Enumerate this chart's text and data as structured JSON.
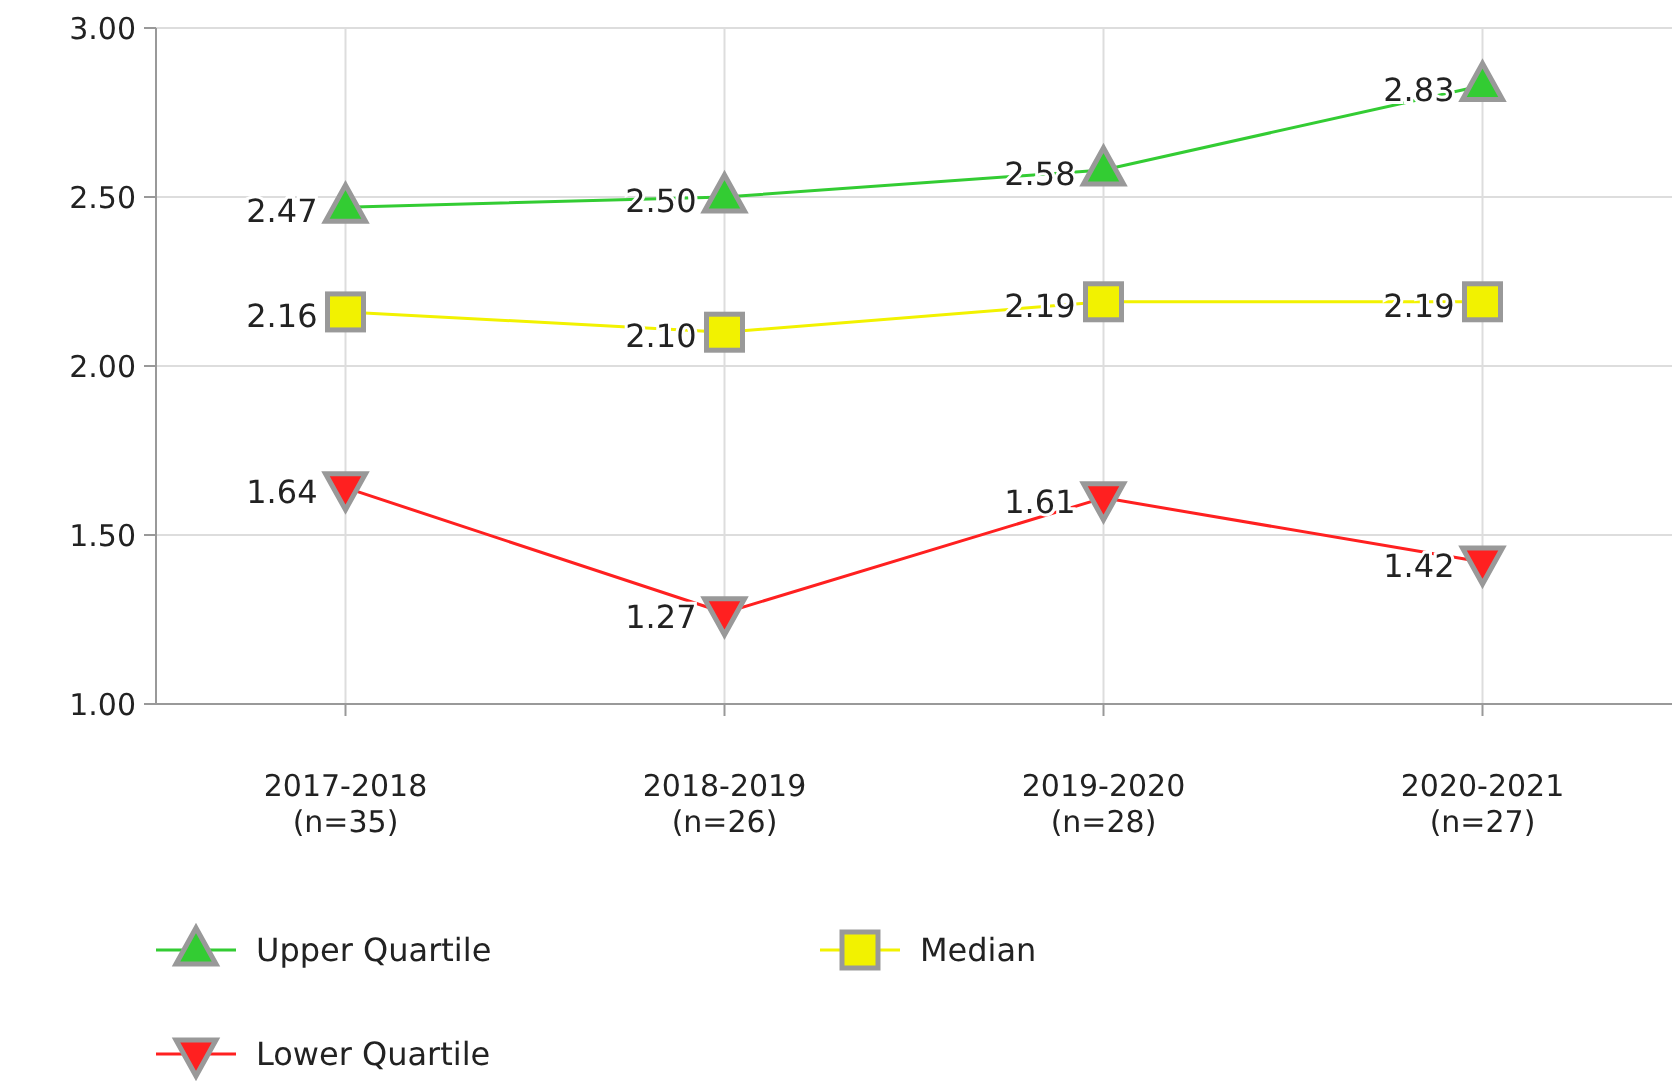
{
  "chart_data": {
    "type": "line",
    "categories": [
      "2017-2018\n(n=35)",
      "2018-2019\n(n=26)",
      "2019-2020\n(n=28)",
      "2020-2021\n(n=27)"
    ],
    "ylim": [
      1,
      3
    ],
    "yticks": [
      {
        "value": 1,
        "label": "1.00"
      },
      {
        "value": 1.5,
        "label": "1.50"
      },
      {
        "value": 2,
        "label": "2.00"
      },
      {
        "value": 2.5,
        "label": "2.50"
      },
      {
        "value": 3,
        "label": "3.00"
      }
    ],
    "grid": true,
    "legend": "bottom",
    "series": [
      {
        "name": "Upper Quartile",
        "color": "#33cc33",
        "marker": "triangle",
        "values": [
          2.47,
          2.5,
          2.58,
          2.83
        ],
        "value_labels": [
          "2.47",
          "2.50",
          "2.58",
          "2.83"
        ]
      },
      {
        "name": "Median",
        "color": "#f2f200",
        "marker": "square",
        "values": [
          2.16,
          2.1,
          2.19,
          2.19
        ],
        "value_labels": [
          "2.16",
          "2.10",
          "2.19",
          "2.19"
        ]
      },
      {
        "name": "Lower Quartile",
        "color": "#ff2020",
        "marker": "triangle-down",
        "values": [
          1.64,
          1.27,
          1.61,
          1.42
        ],
        "value_labels": [
          "1.64",
          "1.27",
          "1.61",
          "1.42"
        ]
      }
    ]
  }
}
